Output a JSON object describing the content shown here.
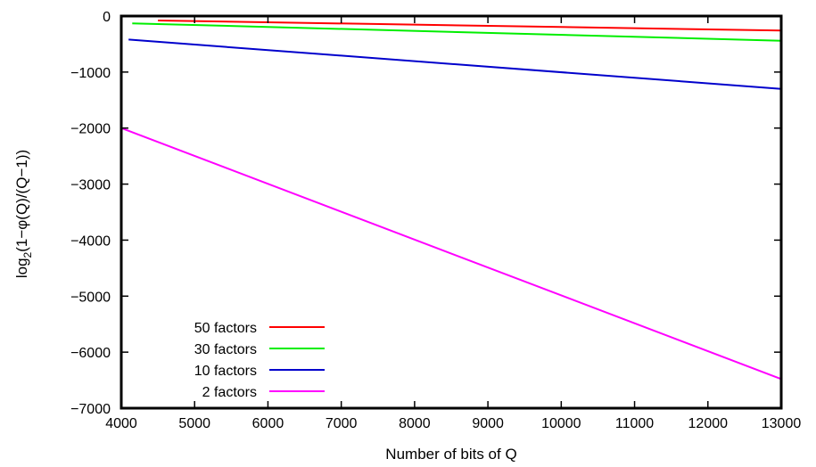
{
  "chart_data": {
    "type": "line",
    "title": "",
    "xlabel": "Number of bits of Q",
    "ylabel_main": "log",
    "ylabel_sub": "2",
    "ylabel_rest": "(1−φ(Q)/(Q−1))",
    "xlim": [
      4000,
      13000
    ],
    "ylim": [
      -7000,
      0
    ],
    "xticks": [
      4000,
      5000,
      6000,
      7000,
      8000,
      9000,
      10000,
      11000,
      12000,
      13000
    ],
    "yticks": [
      0,
      -1000,
      -2000,
      -3000,
      -4000,
      -5000,
      -6000,
      -7000
    ],
    "xtick_labels": [
      "4000",
      "5000",
      "6000",
      "7000",
      "8000",
      "9000",
      "10000",
      "11000",
      "12000",
      "13000"
    ],
    "ytick_labels": [
      "0",
      "−1000",
      "−2000",
      "−3000",
      "−4000",
      "−5000",
      "−6000",
      "−7000"
    ],
    "grid": false,
    "legend_position": "bottom-left",
    "series": [
      {
        "name": "50 factors",
        "color": "#ff0000",
        "x": [
          4500,
          13000
        ],
        "y": [
          -80,
          -260
        ]
      },
      {
        "name": "30 factors",
        "color": "#00ee00",
        "x": [
          4150,
          13000
        ],
        "y": [
          -130,
          -440
        ]
      },
      {
        "name": "10 factors",
        "color": "#0000cc",
        "x": [
          4100,
          13000
        ],
        "y": [
          -420,
          -1300
        ]
      },
      {
        "name": "2 factors",
        "color": "#ff00ff",
        "x": [
          4000,
          13000
        ],
        "y": [
          -2000,
          -6480
        ]
      }
    ]
  }
}
